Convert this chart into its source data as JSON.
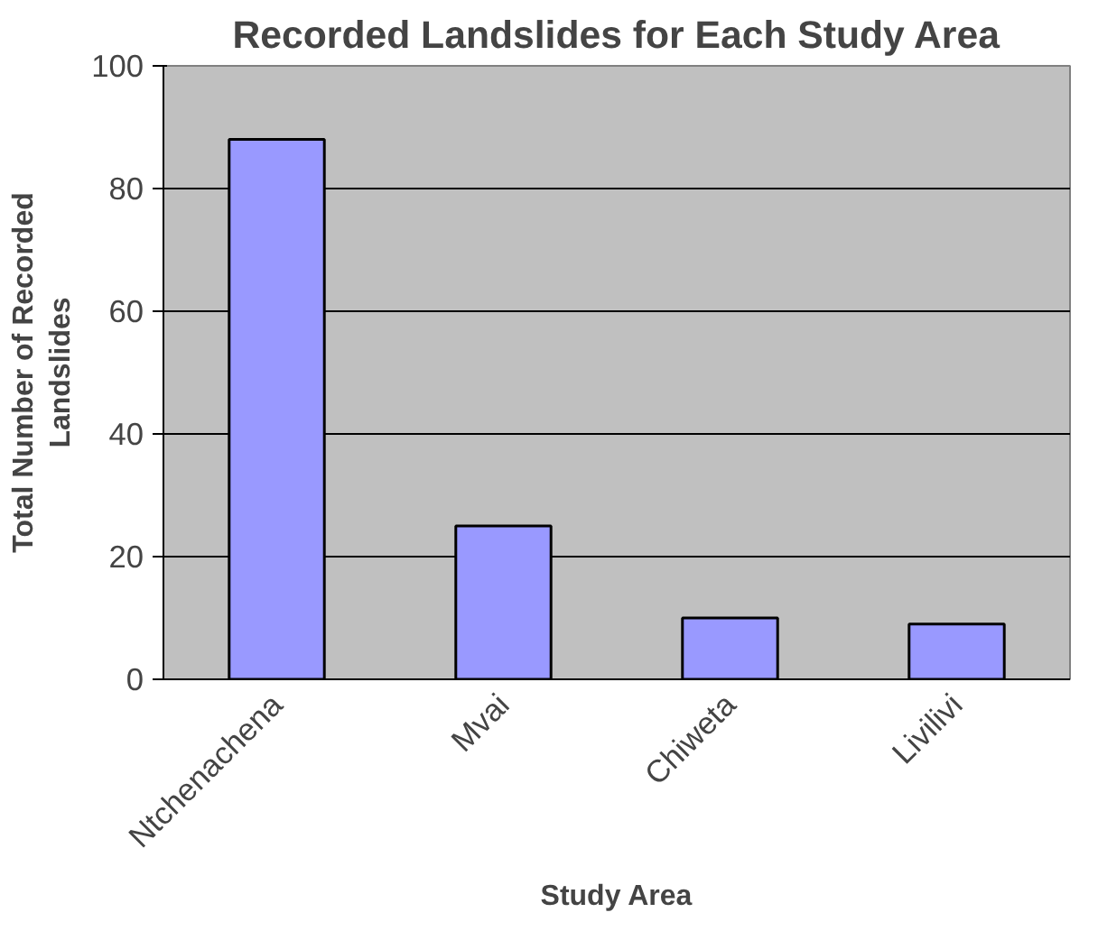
{
  "chart_data": {
    "type": "bar",
    "title": "Recorded Landslides for Each Study Area",
    "xlabel": "Study Area",
    "ylabel": "Total Number of Recorded Landslides",
    "categories": [
      "Ntchenachena",
      "Mvai",
      "Chiweta",
      "Livilivi"
    ],
    "values": [
      88,
      25,
      10,
      9
    ],
    "color": "#9999ff",
    "ylim": [
      0,
      100
    ],
    "yticks": [
      0,
      20,
      40,
      60,
      80,
      100
    ],
    "grid": "y"
  }
}
